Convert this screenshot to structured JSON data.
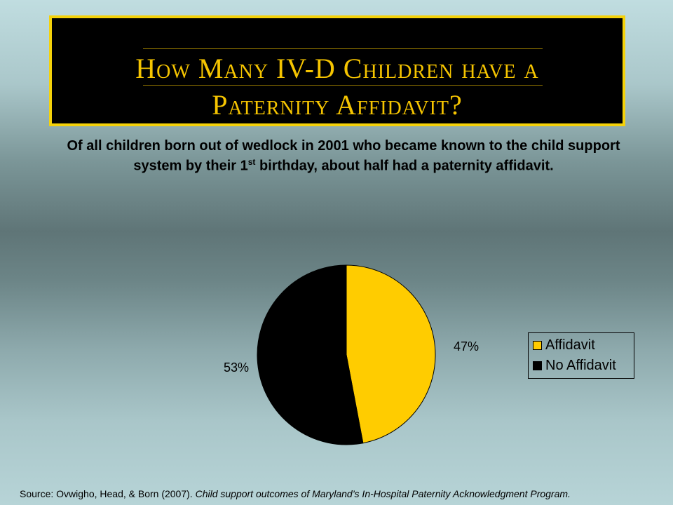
{
  "title": {
    "line1": "How Many IV-D Children have a",
    "line2": "Paternity Affidavit?"
  },
  "subtitle": {
    "part1": "Of all children born out of wedlock in 2001 who became known to the child support system by their 1",
    "sup": "st",
    "part2": " birthday, about half had a paternity affidavit."
  },
  "source": {
    "plain": "Source: Ovwigho, Head, & Born (2007). ",
    "italic": "Child support outcomes of Maryland’s In-Hospital Paternity Acknowledgment Program."
  },
  "colors": {
    "affidavit": "#ffcc00",
    "no_affidavit": "#000000",
    "title_text": "#f5c400",
    "title_border": "#f5d20a"
  },
  "chart_data": {
    "type": "pie",
    "categories": [
      "Affidavit",
      "No Affidavit"
    ],
    "values": [
      47,
      53
    ],
    "data_labels": [
      "47%",
      "53%"
    ],
    "legend": {
      "placement": "right",
      "items": [
        "Affidavit",
        "No Affidavit"
      ]
    }
  }
}
